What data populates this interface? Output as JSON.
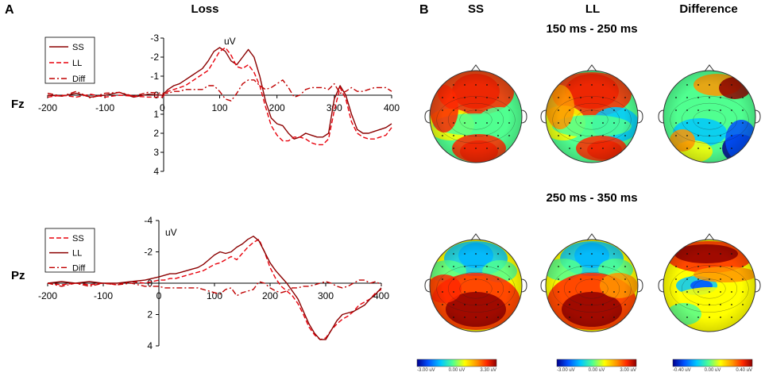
{
  "panels": {
    "a": {
      "letter": "A",
      "title": "Loss"
    },
    "b": {
      "letter": "B",
      "columns": [
        "SS",
        "LL",
        "Difference"
      ],
      "windows": [
        "150 ms - 250 ms",
        "250 ms - 350 ms"
      ],
      "colorbars": [
        {
          "min": "-3.00 uV",
          "mid": "0.00 uV",
          "max": "3.30 uV"
        },
        {
          "min": "-3.00 uV",
          "mid": "0.00 uV",
          "max": "3.00 uV"
        },
        {
          "min": "-0.40 uV",
          "mid": "0.00 uV",
          "max": "0.40 uV"
        }
      ],
      "colormap": [
        "#00008f",
        "#0050ff",
        "#00c8ff",
        "#50ff90",
        "#ffff00",
        "#ff9600",
        "#ff2800",
        "#8f0000"
      ]
    }
  },
  "chart_data": [
    {
      "type": "line",
      "electrode": "Fz",
      "unit_label": "uV",
      "xlabel": "",
      "ylabel": "uV",
      "xlim": [
        -200,
        400
      ],
      "ylim": [
        -3,
        4
      ],
      "y_inverted": true,
      "xticks": [
        -200,
        -100,
        0,
        100,
        200,
        300,
        400
      ],
      "yticks": [
        -3,
        -2,
        -1,
        0,
        1,
        2,
        3,
        4
      ],
      "legend_position": "top-left",
      "series": [
        {
          "name": "SS",
          "style": "solid",
          "color": "#8b0000",
          "x": [
            -200,
            -175,
            -150,
            -125,
            -100,
            -75,
            -50,
            -25,
            0,
            10,
            20,
            30,
            40,
            50,
            60,
            70,
            80,
            90,
            100,
            110,
            120,
            130,
            140,
            150,
            160,
            170,
            180,
            190,
            200,
            210,
            220,
            230,
            240,
            250,
            260,
            270,
            280,
            290,
            300,
            310,
            320,
            330,
            340,
            350,
            360,
            370,
            380,
            390,
            400
          ],
          "values": [
            0.0,
            0.05,
            -0.1,
            0.1,
            0.0,
            -0.15,
            0.1,
            -0.05,
            0.0,
            -0.3,
            -0.5,
            -0.6,
            -0.8,
            -1.0,
            -1.2,
            -1.4,
            -1.8,
            -2.3,
            -2.5,
            -2.3,
            -1.8,
            -1.6,
            -2.0,
            -2.4,
            -2.0,
            -1.0,
            0.3,
            1.2,
            1.5,
            1.6,
            2.0,
            2.3,
            2.2,
            2.0,
            2.1,
            2.2,
            2.2,
            2.0,
            0.2,
            -0.5,
            0.0,
            1.0,
            1.8,
            2.0,
            2.0,
            1.9,
            1.8,
            1.7,
            1.5
          ]
        },
        {
          "name": "LL",
          "style": "dashed",
          "color": "#e8000b",
          "x": [
            -200,
            -175,
            -150,
            -125,
            -100,
            -75,
            -50,
            -25,
            0,
            10,
            20,
            30,
            40,
            50,
            60,
            70,
            80,
            90,
            100,
            110,
            120,
            130,
            140,
            150,
            160,
            170,
            180,
            190,
            200,
            210,
            220,
            230,
            240,
            250,
            260,
            270,
            280,
            290,
            300,
            310,
            320,
            330,
            340,
            350,
            360,
            370,
            380,
            390,
            400
          ],
          "values": [
            0.1,
            0.0,
            0.1,
            -0.05,
            0.1,
            0.0,
            0.05,
            0.1,
            0.1,
            -0.2,
            -0.3,
            -0.4,
            -0.5,
            -0.7,
            -0.9,
            -1.1,
            -1.3,
            -1.8,
            -2.3,
            -2.5,
            -2.1,
            -1.5,
            -1.4,
            -1.6,
            -1.2,
            -0.5,
            0.6,
            1.6,
            2.1,
            2.4,
            2.4,
            2.2,
            2.2,
            2.3,
            2.5,
            2.6,
            2.6,
            2.3,
            0.8,
            -0.4,
            0.2,
            1.4,
            2.0,
            2.2,
            2.3,
            2.3,
            2.2,
            2.1,
            1.7
          ]
        },
        {
          "name": "Diff",
          "style": "dashdot",
          "color": "#c00000",
          "x": [
            -200,
            -175,
            -150,
            -125,
            -100,
            -75,
            -50,
            -25,
            0,
            10,
            20,
            30,
            40,
            50,
            60,
            70,
            80,
            90,
            100,
            110,
            120,
            130,
            140,
            150,
            160,
            170,
            180,
            190,
            200,
            210,
            220,
            230,
            240,
            250,
            260,
            270,
            280,
            290,
            300,
            310,
            320,
            330,
            340,
            350,
            360,
            370,
            380,
            390,
            400
          ],
          "values": [
            -0.1,
            0.05,
            -0.2,
            0.15,
            -0.1,
            -0.15,
            0.05,
            -0.15,
            -0.1,
            -0.1,
            -0.2,
            -0.2,
            -0.3,
            -0.3,
            -0.3,
            -0.3,
            -0.5,
            -0.5,
            -0.2,
            0.2,
            0.3,
            -0.1,
            -0.6,
            -0.8,
            -0.8,
            -0.5,
            -0.3,
            -0.4,
            -0.6,
            -0.8,
            -0.4,
            0.1,
            0.0,
            -0.3,
            -0.4,
            -0.4,
            -0.4,
            -0.3,
            -0.6,
            -0.1,
            -0.2,
            -0.4,
            -0.2,
            -0.2,
            -0.3,
            -0.4,
            -0.4,
            -0.4,
            -0.2
          ]
        }
      ]
    },
    {
      "type": "line",
      "electrode": "Pz",
      "unit_label": "uV",
      "xlabel": "",
      "ylabel": "uV",
      "xlim": [
        -200,
        400
      ],
      "ylim": [
        -4,
        4
      ],
      "y_inverted": true,
      "xticks": [
        -200,
        -100,
        0,
        100,
        200,
        300,
        400
      ],
      "yticks": [
        -4,
        -2,
        0,
        2,
        4
      ],
      "legend_position": "top-left",
      "series": [
        {
          "name": "SS",
          "style": "dashed",
          "color": "#e8000b",
          "x": [
            -200,
            -175,
            -150,
            -125,
            -100,
            -75,
            -50,
            -25,
            0,
            10,
            20,
            30,
            40,
            50,
            60,
            70,
            80,
            90,
            100,
            110,
            120,
            130,
            140,
            150,
            160,
            170,
            180,
            190,
            200,
            210,
            220,
            230,
            240,
            250,
            260,
            270,
            280,
            290,
            300,
            310,
            320,
            330,
            340,
            350,
            360,
            370,
            380,
            390,
            400
          ],
          "values": [
            0.0,
            0.1,
            0.0,
            0.1,
            0.0,
            0.1,
            -0.1,
            0.0,
            -0.2,
            -0.2,
            -0.3,
            -0.3,
            -0.4,
            -0.5,
            -0.6,
            -0.7,
            -0.8,
            -1.0,
            -1.2,
            -1.3,
            -1.5,
            -1.7,
            -1.5,
            -1.9,
            -2.3,
            -2.6,
            -2.8,
            -2.0,
            -1.0,
            -0.3,
            0.2,
            0.5,
            0.8,
            1.3,
            2.0,
            2.8,
            3.3,
            3.6,
            3.5,
            3.0,
            2.6,
            2.3,
            2.1,
            1.8,
            1.4,
            1.2,
            1.0,
            0.6,
            0.4
          ]
        },
        {
          "name": "LL",
          "style": "solid",
          "color": "#8b0000",
          "x": [
            -200,
            -175,
            -150,
            -125,
            -100,
            -75,
            -50,
            -25,
            0,
            10,
            20,
            30,
            40,
            50,
            60,
            70,
            80,
            90,
            100,
            110,
            120,
            130,
            140,
            150,
            160,
            170,
            180,
            190,
            200,
            210,
            220,
            230,
            240,
            250,
            260,
            270,
            280,
            290,
            300,
            310,
            320,
            330,
            340,
            350,
            360,
            370,
            380,
            390,
            400
          ],
          "values": [
            0.0,
            -0.1,
            0.0,
            -0.1,
            0.0,
            0.0,
            -0.1,
            -0.2,
            -0.4,
            -0.5,
            -0.6,
            -0.6,
            -0.7,
            -0.8,
            -0.9,
            -1.0,
            -1.2,
            -1.5,
            -1.8,
            -2.0,
            -1.9,
            -2.0,
            -2.3,
            -2.5,
            -2.8,
            -3.0,
            -2.7,
            -2.0,
            -1.3,
            -0.8,
            -0.4,
            0.0,
            0.5,
            1.0,
            1.8,
            2.6,
            3.2,
            3.6,
            3.6,
            3.0,
            2.4,
            2.0,
            1.9,
            1.8,
            1.6,
            1.4,
            1.0,
            0.7,
            0.3
          ]
        },
        {
          "name": "Diff",
          "style": "dashdot",
          "color": "#c00000",
          "x": [
            -200,
            -175,
            -150,
            -125,
            -100,
            -75,
            -50,
            -25,
            0,
            10,
            20,
            30,
            40,
            50,
            60,
            70,
            80,
            90,
            100,
            110,
            120,
            130,
            140,
            150,
            160,
            170,
            180,
            190,
            200,
            210,
            220,
            230,
            240,
            250,
            260,
            270,
            280,
            290,
            300,
            310,
            320,
            330,
            340,
            350,
            360,
            370,
            380,
            390,
            400
          ],
          "values": [
            0.0,
            0.2,
            0.0,
            0.2,
            0.0,
            0.1,
            0.0,
            0.2,
            0.2,
            0.3,
            0.3,
            0.3,
            0.3,
            0.3,
            0.3,
            0.3,
            0.4,
            0.5,
            0.6,
            0.7,
            0.4,
            0.3,
            0.8,
            0.6,
            0.5,
            0.4,
            -0.1,
            0.0,
            0.3,
            0.5,
            0.6,
            0.5,
            0.3,
            0.3,
            0.2,
            0.2,
            0.1,
            0.0,
            -0.1,
            0.0,
            0.2,
            0.3,
            0.2,
            0.0,
            -0.2,
            -0.2,
            0.0,
            -0.1,
            0.1
          ]
        }
      ]
    }
  ]
}
